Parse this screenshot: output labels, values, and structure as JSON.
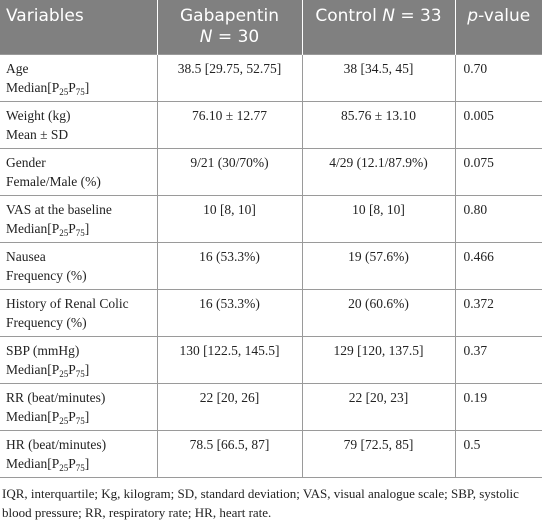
{
  "table": {
    "header": {
      "variables": "Variables",
      "gabapentin": [
        "Gabapentin",
        "N",
        " = 30"
      ],
      "control": [
        "Control ",
        "N",
        " = 33"
      ],
      "p_value": [
        "p",
        "-value"
      ]
    },
    "rows": [
      {
        "variable": "Age",
        "statistic": [
          "Median[P",
          "25",
          "P",
          "75",
          "]"
        ],
        "gabapentin": "38.5 [29.75, 52.75]",
        "control": "38 [34.5, 45]",
        "p_value": "0.70"
      },
      {
        "variable": "Weight (kg)",
        "statistic": [
          "Mean ± SD"
        ],
        "gabapentin": "76.10 ± 12.77",
        "control": "85.76 ± 13.10",
        "p_value": "0.005"
      },
      {
        "variable": "Gender",
        "statistic": [
          "Female/Male (%)"
        ],
        "gabapentin": "9/21 (30/70%)",
        "control": "4/29 (12.1/87.9%)",
        "p_value": "0.075"
      },
      {
        "variable": "VAS at the baseline",
        "statistic": [
          "Median[P",
          "25",
          "P",
          "75",
          "]"
        ],
        "gabapentin": "10 [8, 10]",
        "control": "10 [8, 10]",
        "p_value": "0.80"
      },
      {
        "variable": "Nausea",
        "statistic": [
          "Frequency (%)"
        ],
        "gabapentin": "16 (53.3%)",
        "control": "19 (57.6%)",
        "p_value": "0.466"
      },
      {
        "variable": "History of Renal Colic",
        "statistic": [
          "Frequency (%)"
        ],
        "gabapentin": "16 (53.3%)",
        "control": "20 (60.6%)",
        "p_value": "0.372"
      },
      {
        "variable": "SBP (mmHg)",
        "statistic": [
          "Median[P",
          "25",
          "P",
          "75",
          "]"
        ],
        "gabapentin": "130 [122.5, 145.5]",
        "control": "129 [120, 137.5]",
        "p_value": "0.37"
      },
      {
        "variable": "RR (beat/minutes)",
        "statistic": [
          "Median[P",
          "25",
          "P",
          "75",
          "]"
        ],
        "gabapentin": "22 [20, 26]",
        "control": "22 [20, 23]",
        "p_value": "0.19"
      },
      {
        "variable": "HR (beat/minutes)",
        "statistic": [
          "Median[P",
          "25",
          "P",
          "75",
          "]"
        ],
        "gabapentin": "78.5 [66.5, 87]",
        "control": "79 [72.5, 85]",
        "p_value": "0.5"
      }
    ],
    "footnote": "IQR, interquartile; Kg, kilogram; SD, standard deviation; VAS, visual analogue scale; SBP, systolic blood pressure; RR, respiratory rate; HR, heart rate."
  }
}
